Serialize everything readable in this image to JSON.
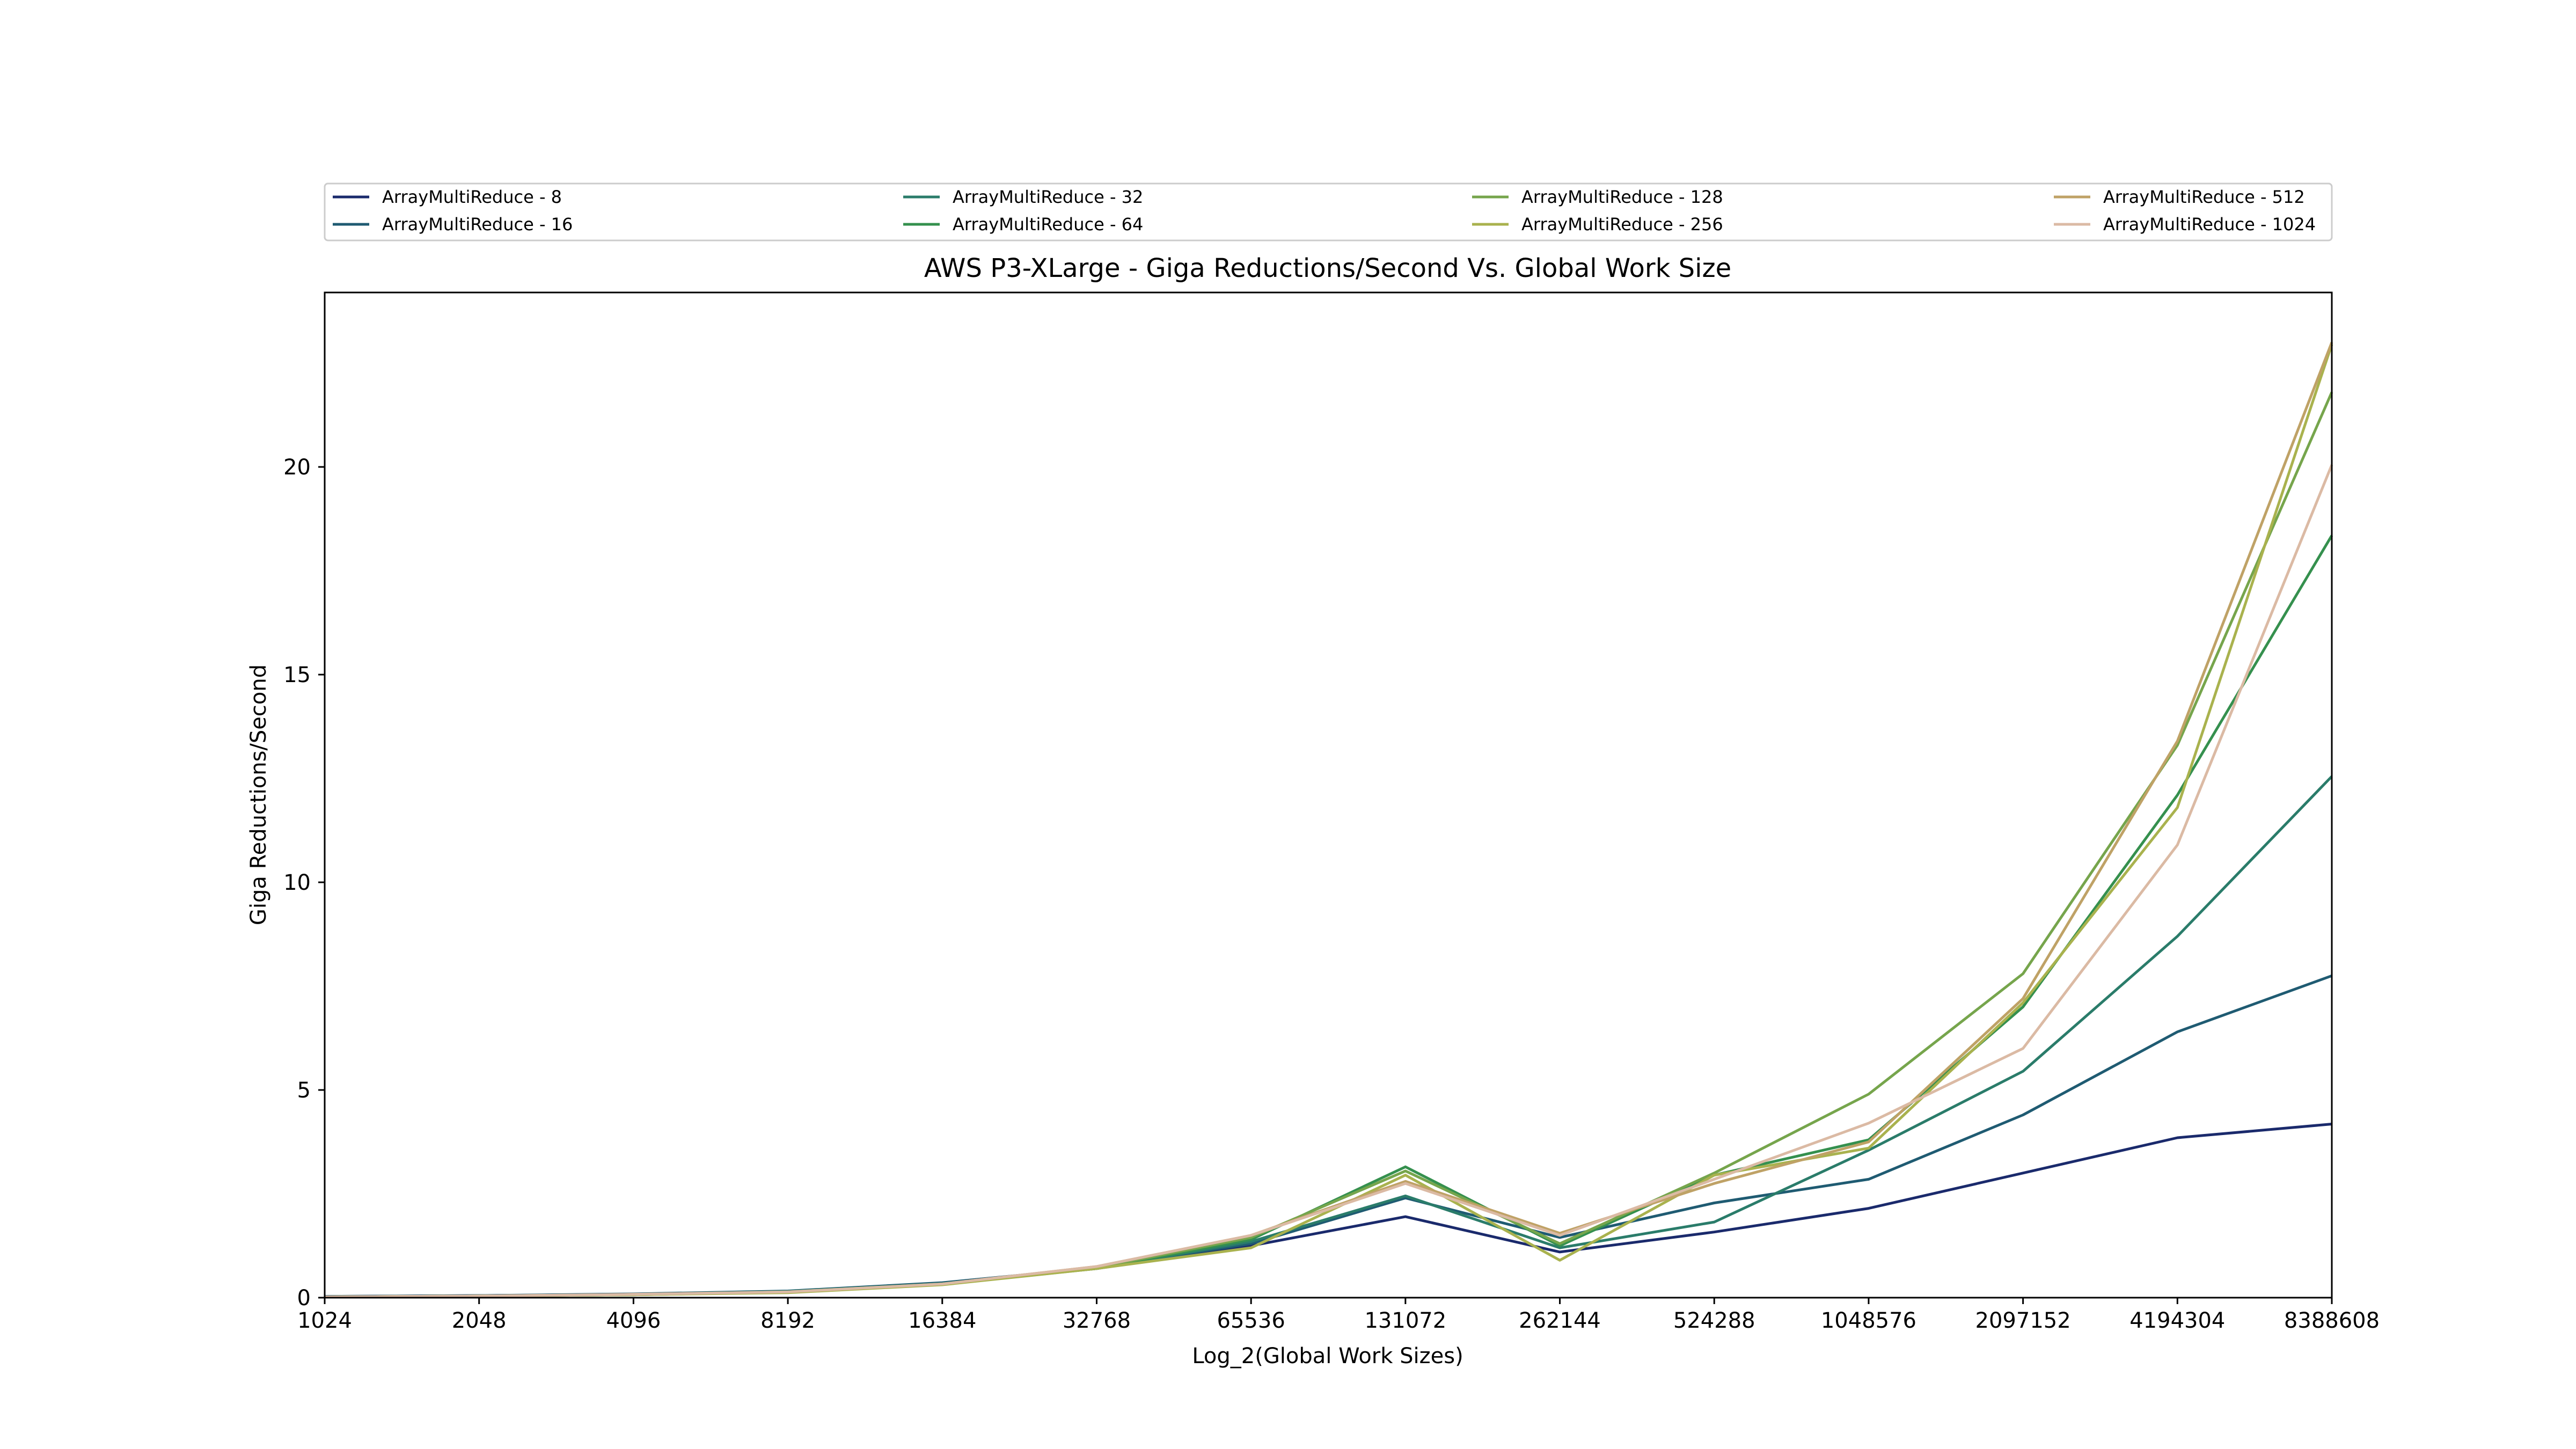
{
  "chart_data": {
    "type": "line",
    "title": "AWS P3-XLarge - Giga Reductions/Second Vs. Global Work Size",
    "xlabel": "Log_2(Global Work Sizes)",
    "ylabel": "Giga Reductions/Second",
    "x_scale": "log2",
    "categories": [
      "1024",
      "2048",
      "4096",
      "8192",
      "16384",
      "32768",
      "65536",
      "131072",
      "262144",
      "524288",
      "1048576",
      "2097152",
      "4194304",
      "8388608"
    ],
    "ylim": [
      0,
      24.2
    ],
    "yticks": [
      "0",
      "5",
      "10",
      "15",
      "20"
    ],
    "grid": false,
    "legend_position": "top",
    "series": [
      {
        "name": "ArrayMultiReduce - 8",
        "color": "#1a2a6c",
        "values": [
          0.03,
          0.05,
          0.08,
          0.15,
          0.35,
          0.7,
          1.25,
          1.95,
          1.1,
          1.58,
          2.15,
          3.0,
          3.85,
          4.18
        ]
      },
      {
        "name": "ArrayMultiReduce - 16",
        "color": "#1f5b72",
        "values": [
          0.03,
          0.05,
          0.09,
          0.16,
          0.36,
          0.72,
          1.3,
          2.4,
          1.45,
          2.28,
          2.85,
          4.4,
          6.4,
          7.75
        ]
      },
      {
        "name": "ArrayMultiReduce - 32",
        "color": "#2a7c6a",
        "values": [
          0.02,
          0.04,
          0.08,
          0.15,
          0.34,
          0.7,
          1.35,
          2.45,
          1.2,
          1.82,
          3.55,
          5.45,
          8.7,
          12.55
        ]
      },
      {
        "name": "ArrayMultiReduce - 64",
        "color": "#35904e",
        "values": [
          0.02,
          0.04,
          0.07,
          0.13,
          0.32,
          0.7,
          1.4,
          3.15,
          1.25,
          2.95,
          3.8,
          7.0,
          12.1,
          18.35
        ]
      },
      {
        "name": "ArrayMultiReduce - 128",
        "color": "#76a54c",
        "values": [
          0.02,
          0.04,
          0.07,
          0.13,
          0.32,
          0.72,
          1.45,
          3.05,
          1.3,
          3.0,
          4.9,
          7.8,
          13.3,
          21.8
        ]
      },
      {
        "name": "ArrayMultiReduce - 256",
        "color": "#a9b24e",
        "values": [
          0.02,
          0.04,
          0.07,
          0.12,
          0.31,
          0.7,
          1.2,
          2.95,
          0.9,
          2.95,
          3.6,
          7.1,
          11.8,
          22.95
        ]
      },
      {
        "name": "ArrayMultiReduce - 512",
        "color": "#bfa266",
        "values": [
          0.02,
          0.04,
          0.08,
          0.14,
          0.33,
          0.75,
          1.5,
          2.8,
          1.55,
          2.75,
          3.75,
          7.2,
          13.4,
          23.0
        ]
      },
      {
        "name": "ArrayMultiReduce - 1024",
        "color": "#dbbaa4",
        "values": [
          0.02,
          0.04,
          0.08,
          0.14,
          0.33,
          0.75,
          1.5,
          2.75,
          1.5,
          2.85,
          4.2,
          6.0,
          10.9,
          20.05
        ]
      }
    ]
  }
}
